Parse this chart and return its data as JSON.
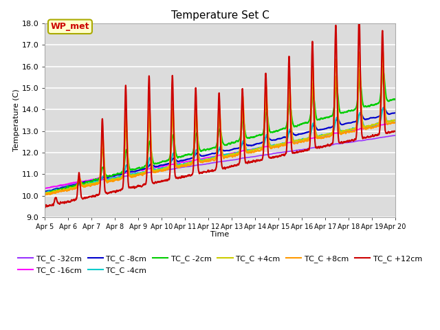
{
  "title": "Temperature Set C",
  "xlabel": "Time",
  "ylabel": "Temperature (C)",
  "ylim": [
    9.0,
    18.0
  ],
  "yticks": [
    9.0,
    10.0,
    11.0,
    12.0,
    13.0,
    14.0,
    15.0,
    16.0,
    17.0,
    18.0
  ],
  "xtick_labels": [
    "Apr 5",
    "Apr 6",
    "Apr 7",
    "Apr 8",
    "Apr 9",
    "Apr 10",
    "Apr 11",
    "Apr 12",
    "Apr 13",
    "Apr 14",
    "Apr 15",
    "Apr 16",
    "Apr 17",
    "Apr 18",
    "Apr 19",
    "Apr 20"
  ],
  "series": [
    {
      "name": "TC_C -32cm",
      "color": "#9933FF",
      "lw": 1.2
    },
    {
      "name": "TC_C -16cm",
      "color": "#FF00FF",
      "lw": 1.2
    },
    {
      "name": "TC_C -8cm",
      "color": "#0000CC",
      "lw": 1.5
    },
    {
      "name": "TC_C -4cm",
      "color": "#00CCCC",
      "lw": 1.5
    },
    {
      "name": "TC_C -2cm",
      "color": "#00CC00",
      "lw": 1.5
    },
    {
      "name": "TC_C +4cm",
      "color": "#CCCC00",
      "lw": 1.5
    },
    {
      "name": "TC_C +8cm",
      "color": "#FF9900",
      "lw": 1.5
    },
    {
      "name": "TC_C +12cm",
      "color": "#CC0000",
      "lw": 1.5
    }
  ],
  "wp_met": {
    "text": "WP_met",
    "facecolor": "#FFFFCC",
    "edgecolor": "#AAAA00",
    "textcolor": "#CC0000",
    "fontsize": 9
  },
  "plot_bg_color": "#DCDCDC",
  "grid_color": "white"
}
